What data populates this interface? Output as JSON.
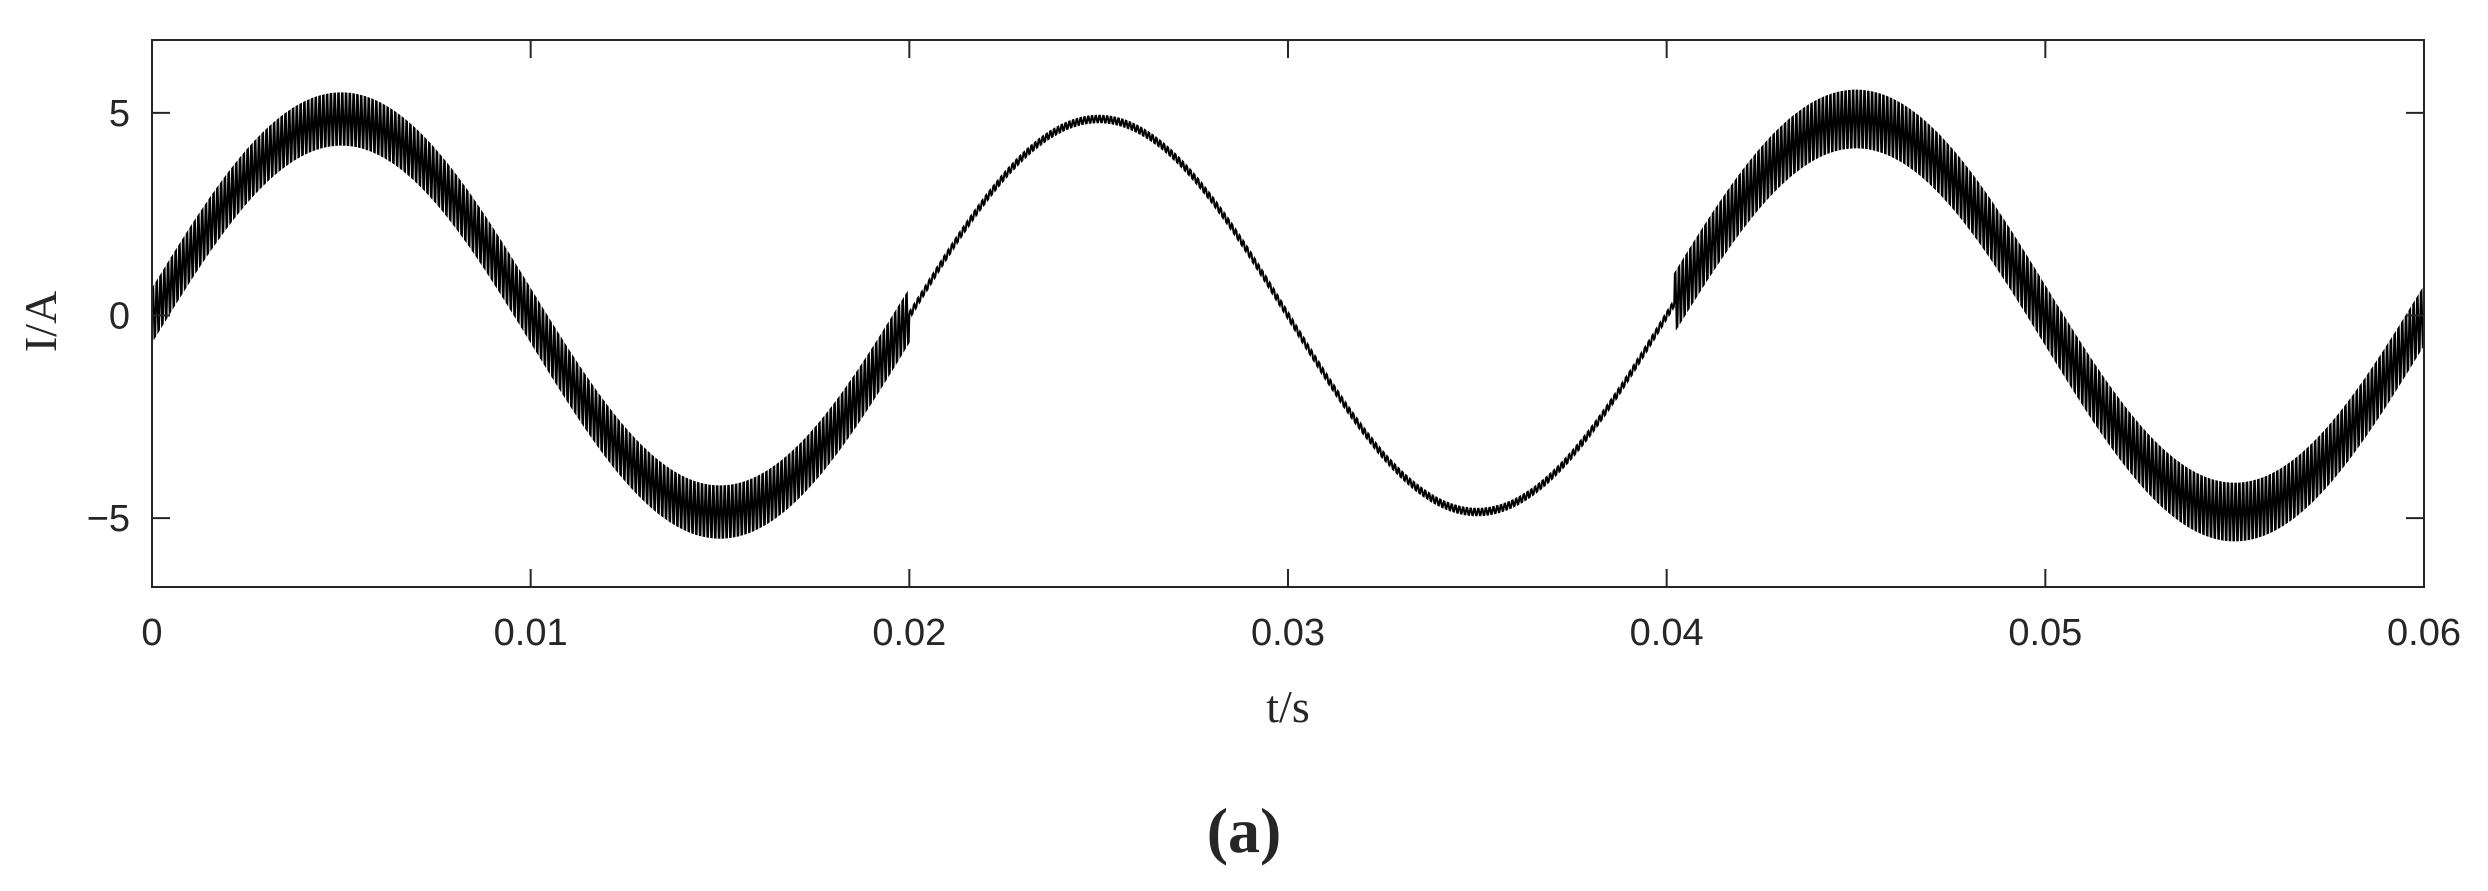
{
  "chart_data": {
    "type": "line",
    "title": "",
    "xlabel": "t/s",
    "ylabel": "I/A",
    "xlim": [
      0,
      0.06
    ],
    "ylim": [
      -6.7,
      6.8
    ],
    "xticks": [
      0,
      0.01,
      0.02,
      0.03,
      0.04,
      0.05,
      0.06
    ],
    "xtick_labels": [
      "0",
      "0.01",
      "0.02",
      "0.03",
      "0.04",
      "0.05",
      "0.06"
    ],
    "yticks": [
      5,
      0,
      -5
    ],
    "ytick_labels": [
      "5",
      "0",
      "−5"
    ],
    "grid": false,
    "legend": "none",
    "line_color": "#000000",
    "series": [
      {
        "signal": "sinusoid",
        "amplitude": 4.85,
        "frequency_hz": 50,
        "phase": 0,
        "segments": [
          {
            "x_start": 0,
            "x_end": 0.02,
            "ripple_amplitude": 0.95
          },
          {
            "x_start": 0.02,
            "x_end": 0.0402,
            "ripple_amplitude": 0.12
          },
          {
            "x_start": 0.0402,
            "x_end": 0.06,
            "ripple_amplitude": 1.05
          }
        ]
      }
    ]
  },
  "caption": "(a)"
}
